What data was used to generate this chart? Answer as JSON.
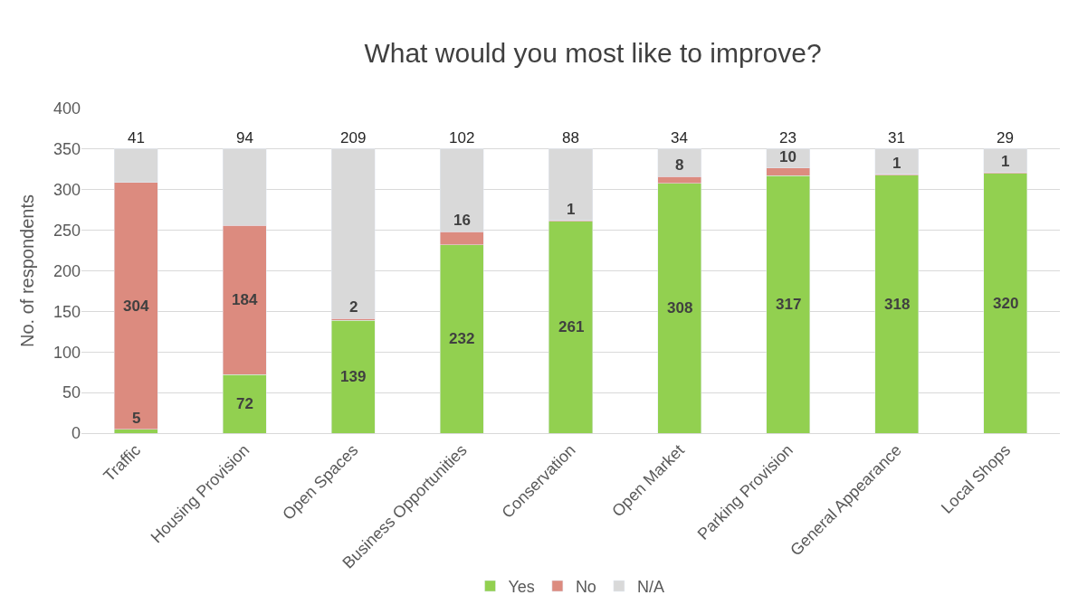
{
  "chart_data": {
    "type": "bar",
    "title": "What would you most like to improve?",
    "ylabel": "No. of respondents",
    "categories": [
      "Traffic",
      "Housing Provision",
      "Open Spaces",
      "Business Opportunities",
      "Conservation",
      "Open Market",
      "Parking Provision",
      "General Appearance",
      "Local Shops"
    ],
    "series": [
      {
        "name": "Yes",
        "color": "#92d050",
        "values": [
          5,
          72,
          139,
          232,
          261,
          308,
          317,
          318,
          320
        ]
      },
      {
        "name": "No",
        "color": "#dc8b7f",
        "values": [
          304,
          184,
          2,
          16,
          1,
          8,
          10,
          1,
          1
        ]
      },
      {
        "name": "N/A",
        "color": "#d9d9d9",
        "values": [
          41,
          94,
          209,
          102,
          88,
          34,
          23,
          31,
          29
        ]
      }
    ],
    "stacked": true,
    "data_labels": true,
    "ylim": [
      0,
      400
    ],
    "yticks": [
      0,
      50,
      100,
      150,
      200,
      250,
      300,
      350,
      400
    ],
    "grid": "y",
    "legend": "bottom"
  }
}
